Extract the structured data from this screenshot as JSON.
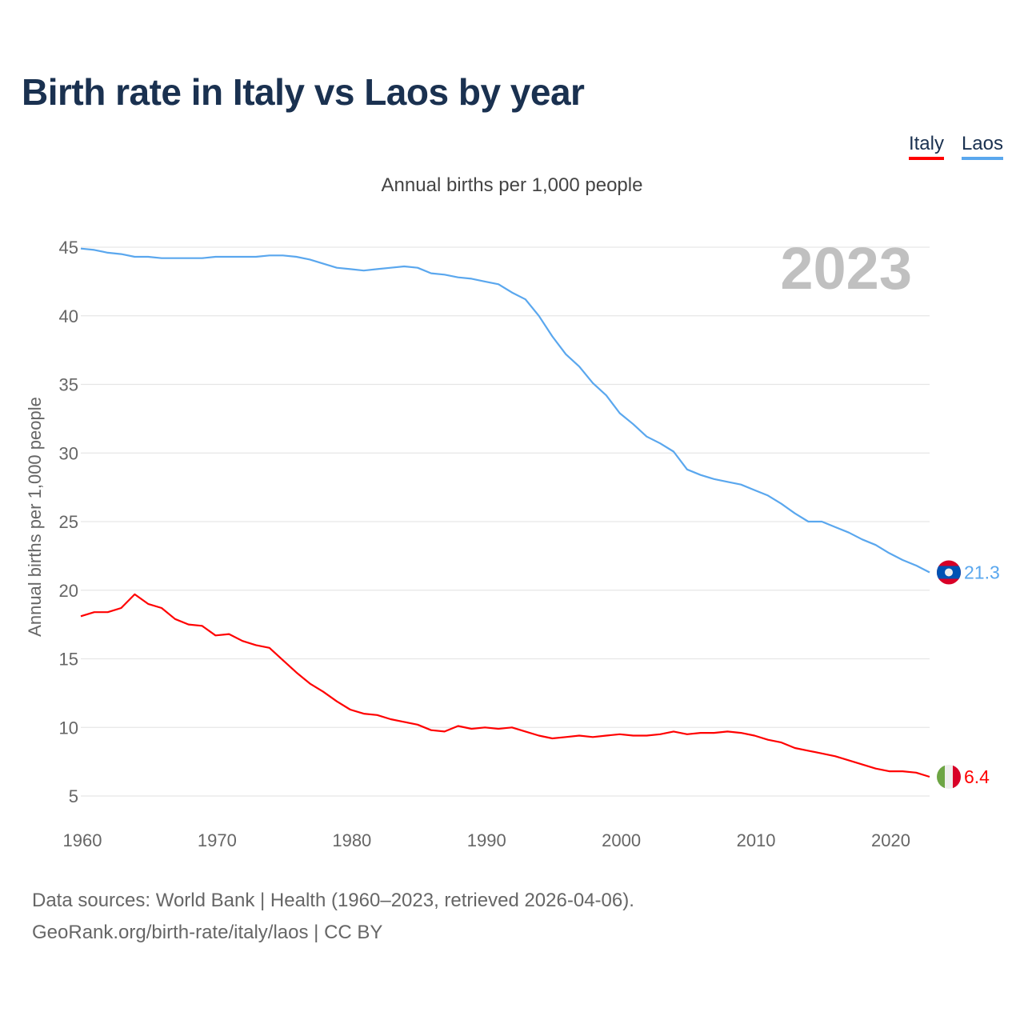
{
  "title": "Birth rate in Italy vs Laos by year",
  "legend": [
    {
      "label": "Italy",
      "color": "#ff0000"
    },
    {
      "label": "Laos",
      "color": "#5aa7ee"
    }
  ],
  "subtitle": "Annual births per 1,000 people",
  "year_watermark": "2023",
  "footer": {
    "line1": "Data sources: World Bank | Health (1960–2023, retrieved 2026-04-06).",
    "line2": "GeoRank.org/birth-rate/italy/laos | CC BY"
  },
  "chart_data": {
    "type": "line",
    "title": "Birth rate in Italy vs Laos by year",
    "xlabel": "",
    "ylabel": "Annual births per 1,000 people",
    "xlim": [
      1960,
      2023
    ],
    "ylim": [
      5,
      45
    ],
    "x_ticks": [
      "1960",
      "1970",
      "1980",
      "1990",
      "2000",
      "2010",
      "2020"
    ],
    "y_ticks": [
      "5",
      "10",
      "15",
      "20",
      "25",
      "30",
      "35",
      "40",
      "45"
    ],
    "grid": true,
    "legend_position": "top-right",
    "x_start": 1960,
    "series": [
      {
        "name": "Italy",
        "color": "#ff0000",
        "end_label": "6.4",
        "flag": "italy-flag",
        "values": [
          18.1,
          18.4,
          18.4,
          18.7,
          19.7,
          19.0,
          18.7,
          17.9,
          17.5,
          17.4,
          16.7,
          16.8,
          16.3,
          16.0,
          15.8,
          14.9,
          14.0,
          13.2,
          12.6,
          11.9,
          11.3,
          11.0,
          10.9,
          10.6,
          10.4,
          10.2,
          9.8,
          9.7,
          10.1,
          9.9,
          10.0,
          9.9,
          10.0,
          9.7,
          9.4,
          9.2,
          9.3,
          9.4,
          9.3,
          9.4,
          9.5,
          9.4,
          9.4,
          9.5,
          9.7,
          9.5,
          9.6,
          9.6,
          9.7,
          9.6,
          9.4,
          9.1,
          8.9,
          8.5,
          8.3,
          8.1,
          7.9,
          7.6,
          7.3,
          7.0,
          6.8,
          6.8,
          6.7,
          6.4
        ]
      },
      {
        "name": "Laos",
        "color": "#5aa7ee",
        "end_label": "21.3",
        "flag": "laos-flag",
        "values": [
          44.9,
          44.8,
          44.6,
          44.5,
          44.3,
          44.3,
          44.2,
          44.2,
          44.2,
          44.2,
          44.3,
          44.3,
          44.3,
          44.3,
          44.4,
          44.4,
          44.3,
          44.1,
          43.8,
          43.5,
          43.4,
          43.3,
          43.4,
          43.5,
          43.6,
          43.5,
          43.1,
          43.0,
          42.8,
          42.7,
          42.5,
          42.3,
          41.7,
          41.2,
          40.0,
          38.5,
          37.2,
          36.3,
          35.1,
          34.2,
          32.9,
          32.1,
          31.2,
          30.7,
          30.1,
          28.8,
          28.4,
          28.1,
          27.9,
          27.7,
          27.3,
          26.9,
          26.3,
          25.6,
          25.0,
          25.0,
          24.6,
          24.2,
          23.7,
          23.3,
          22.7,
          22.2,
          21.8,
          21.3
        ]
      }
    ]
  }
}
